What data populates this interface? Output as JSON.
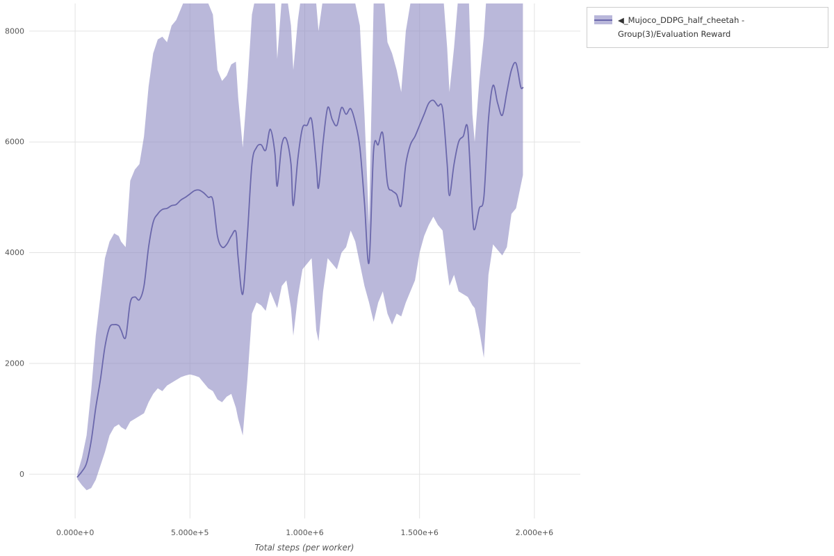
{
  "legend": {
    "label": "◀_Mujoco_DDPG_half_cheetah - Group(3)/Evaluation Reward"
  },
  "chart_data": {
    "type": "line",
    "title": "",
    "xlabel": "Total steps (per worker)",
    "ylabel": "",
    "grid": true,
    "legend_position": "top-right",
    "x_range": [
      -200000,
      2200000
    ],
    "y_range": [
      -800,
      8500
    ],
    "x_ticks": {
      "values": [
        0,
        500000,
        1000000,
        1500000,
        2000000
      ],
      "labels": [
        "0.000e+0",
        "5.000e+5",
        "1.000e+6",
        "1.500e+6",
        "2.000e+6"
      ]
    },
    "y_ticks": {
      "values": [
        0,
        2000,
        4000,
        6000,
        8000
      ],
      "labels": [
        "0",
        "2000",
        "4000",
        "6000",
        "8000"
      ]
    },
    "colors": {
      "line": "#6a67ab",
      "band": "#8f8cc4",
      "band_opacity": 0.62,
      "band_solid": "#b9b7da",
      "grid": "#e3e3e3",
      "tick_text": "#555555"
    },
    "series": [
      {
        "name": "◀_Mujoco_DDPG_half_cheetah - Group(3)/Evaluation Reward",
        "x": [
          10000,
          30000,
          50000,
          70000,
          90000,
          110000,
          130000,
          150000,
          170000,
          190000,
          200000,
          220000,
          240000,
          260000,
          280000,
          300000,
          320000,
          340000,
          360000,
          380000,
          400000,
          420000,
          440000,
          460000,
          480000,
          500000,
          520000,
          540000,
          560000,
          580000,
          600000,
          620000,
          640000,
          660000,
          680000,
          700000,
          710000,
          730000,
          750000,
          770000,
          790000,
          810000,
          830000,
          850000,
          870000,
          880000,
          900000,
          920000,
          940000,
          950000,
          970000,
          990000,
          1010000,
          1030000,
          1050000,
          1060000,
          1080000,
          1100000,
          1120000,
          1140000,
          1160000,
          1180000,
          1200000,
          1220000,
          1240000,
          1260000,
          1280000,
          1300000,
          1320000,
          1340000,
          1360000,
          1380000,
          1400000,
          1420000,
          1440000,
          1460000,
          1480000,
          1500000,
          1520000,
          1540000,
          1560000,
          1580000,
          1600000,
          1620000,
          1630000,
          1650000,
          1670000,
          1690000,
          1710000,
          1730000,
          1740000,
          1760000,
          1780000,
          1800000,
          1820000,
          1840000,
          1860000,
          1880000,
          1900000,
          1920000,
          1940000,
          1950000
        ],
        "mean": [
          -50,
          50,
          200,
          600,
          1200,
          1700,
          2300,
          2650,
          2700,
          2680,
          2600,
          2470,
          3100,
          3200,
          3150,
          3400,
          4100,
          4550,
          4700,
          4780,
          4800,
          4850,
          4870,
          4950,
          5000,
          5060,
          5120,
          5130,
          5080,
          5000,
          4950,
          4300,
          4100,
          4150,
          4300,
          4380,
          3900,
          3250,
          4300,
          5600,
          5900,
          5950,
          5850,
          6230,
          5800,
          5200,
          5950,
          6050,
          5600,
          4850,
          5700,
          6250,
          6300,
          6400,
          5600,
          5170,
          6000,
          6620,
          6400,
          6300,
          6620,
          6500,
          6600,
          6350,
          5900,
          4900,
          3820,
          5850,
          5950,
          6150,
          5250,
          5120,
          5050,
          4850,
          5600,
          5950,
          6100,
          6300,
          6500,
          6700,
          6750,
          6650,
          6600,
          5600,
          5030,
          5600,
          6000,
          6100,
          6230,
          4700,
          4420,
          4800,
          5000,
          6400,
          7020,
          6700,
          6480,
          6900,
          7300,
          7420,
          7000,
          6980
        ],
        "lower": [
          -90,
          -200,
          -290,
          -250,
          -100,
          150,
          400,
          700,
          850,
          900,
          850,
          800,
          950,
          1000,
          1050,
          1100,
          1300,
          1450,
          1550,
          1500,
          1600,
          1650,
          1700,
          1750,
          1780,
          1800,
          1780,
          1750,
          1650,
          1550,
          1500,
          1350,
          1300,
          1400,
          1450,
          1200,
          1000,
          700,
          1700,
          2900,
          3100,
          3050,
          2950,
          3300,
          3100,
          3000,
          3400,
          3500,
          3000,
          2500,
          3200,
          3700,
          3800,
          3900,
          2600,
          2400,
          3300,
          3900,
          3800,
          3700,
          4000,
          4100,
          4400,
          4200,
          3800,
          3400,
          3100,
          2750,
          3100,
          3300,
          2900,
          2700,
          2900,
          2850,
          3100,
          3300,
          3500,
          4000,
          4300,
          4500,
          4650,
          4500,
          4400,
          3700,
          3400,
          3600,
          3300,
          3250,
          3200,
          3050,
          3000,
          2600,
          2100,
          3600,
          4150,
          4050,
          3950,
          4100,
          4700,
          4800,
          5200,
          5400
        ],
        "upper": [
          10,
          300,
          700,
          1500,
          2500,
          3200,
          3900,
          4200,
          4350,
          4300,
          4200,
          4100,
          5300,
          5500,
          5600,
          6100,
          7000,
          7600,
          7850,
          7900,
          7800,
          8100,
          8200,
          8400,
          8600,
          8700,
          8800,
          8800,
          8700,
          8500,
          8300,
          7300,
          7100,
          7200,
          7400,
          7450,
          6800,
          5900,
          7000,
          8300,
          8700,
          8800,
          8700,
          9000,
          8600,
          7500,
          8600,
          8700,
          8100,
          7300,
          8200,
          8800,
          8800,
          8900,
          8500,
          8000,
          8600,
          9200,
          8900,
          8900,
          9200,
          8900,
          8800,
          8500,
          8100,
          6500,
          4500,
          8500,
          8700,
          8900,
          7800,
          7600,
          7300,
          6900,
          8000,
          8500,
          8700,
          8700,
          8800,
          8900,
          8900,
          8800,
          8800,
          7700,
          6900,
          7700,
          8700,
          8900,
          9200,
          6500,
          6000,
          7100,
          7900,
          9200,
          9900,
          9400,
          9000,
          9700,
          9900,
          10000,
          8800,
          8600
        ]
      }
    ]
  }
}
